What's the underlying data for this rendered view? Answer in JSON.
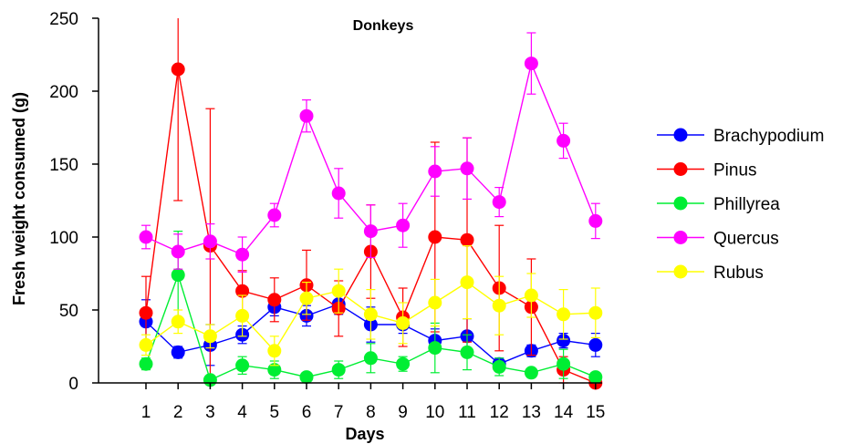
{
  "chart_data": {
    "type": "line",
    "title": "Donkeys",
    "xlabel": "Days",
    "ylabel": "Fresh weight consumed (g)",
    "x": [
      1,
      2,
      3,
      4,
      5,
      6,
      7,
      8,
      9,
      10,
      11,
      12,
      13,
      14,
      15
    ],
    "xticks": [
      "1",
      "2",
      "3",
      "4",
      "5",
      "6",
      "7",
      "8",
      "9",
      "10",
      "11",
      "12",
      "13",
      "14",
      "15"
    ],
    "ylim": [
      0,
      250
    ],
    "yticks": [
      "0",
      "50",
      "100",
      "150",
      "200",
      "250"
    ],
    "legend_position": "right",
    "grid": false,
    "series": [
      {
        "name": "Brachypodium",
        "color": "#0000ff",
        "values": [
          42,
          21,
          26,
          33,
          52,
          46,
          54,
          40,
          40,
          29,
          32,
          13,
          22,
          29,
          26
        ],
        "error": [
          15,
          4,
          14,
          6,
          6,
          7,
          7,
          12,
          6,
          8,
          12,
          4,
          4,
          5,
          8
        ]
      },
      {
        "name": "Pinus",
        "color": "#ff0000",
        "values": [
          48,
          215,
          94,
          63,
          57,
          67,
          51,
          90,
          45,
          100,
          98,
          65,
          52,
          9,
          0
        ],
        "error": [
          25,
          90,
          94,
          14,
          15,
          24,
          19,
          32,
          20,
          65,
          70,
          43,
          33,
          9,
          2
        ]
      },
      {
        "name": "Phillyrea",
        "color": "#00ee33",
        "values": [
          13,
          74,
          2,
          12,
          9,
          4,
          9,
          17,
          13,
          24,
          21,
          11,
          7,
          13,
          4
        ],
        "error": [
          4,
          30,
          2,
          6,
          6,
          3,
          6,
          10,
          5,
          17,
          12,
          6,
          3,
          10,
          3
        ]
      },
      {
        "name": "Quercus",
        "color": "#ff00ff",
        "values": [
          100,
          90,
          97,
          88,
          115,
          183,
          130,
          104,
          108,
          145,
          147,
          124,
          219,
          166,
          111
        ],
        "error": [
          8,
          12,
          12,
          12,
          8,
          11,
          17,
          18,
          15,
          17,
          21,
          10,
          21,
          12,
          12
        ]
      },
      {
        "name": "Rubus",
        "color": "#ffff00",
        "values": [
          26,
          42,
          32,
          46,
          22,
          58,
          63,
          47,
          41,
          55,
          69,
          53,
          60,
          47,
          48
        ],
        "error": [
          7,
          8,
          8,
          14,
          10,
          11,
          15,
          17,
          14,
          16,
          25,
          20,
          15,
          17,
          17
        ]
      }
    ]
  }
}
